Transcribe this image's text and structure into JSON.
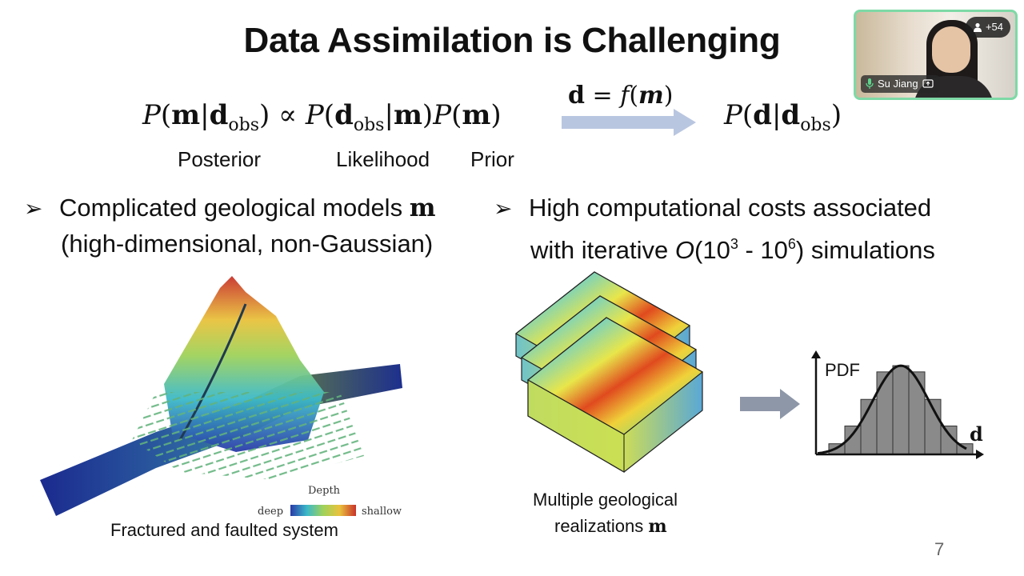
{
  "slide": {
    "title": "Data Assimilation is Challenging",
    "equation": {
      "posterior_label": "Posterior",
      "likelihood_label": "Likelihood",
      "prior_label": "Prior",
      "mapping": "d = f(m)"
    },
    "bullets": [
      {
        "line1_text": "Complicated geological models ",
        "line1_math": "m",
        "line2": "(high-dimensional, non-Gaussian)"
      },
      {
        "line1": "High computational costs associated",
        "line2_a": "with iterative ",
        "line2_O": "O",
        "line2_b": "(10",
        "exp1": "3",
        "line2_c": " - 10",
        "exp2": "6",
        "line2_d": ") simulations"
      }
    ],
    "figure_left": {
      "colorbar_title": "Depth",
      "colorbar_low": "deep",
      "colorbar_high": "shallow",
      "caption": "Fractured and faulted system"
    },
    "figure_middle": {
      "caption_line1": "Multiple geological",
      "caption_line2_text": "realizations ",
      "caption_line2_math": "m"
    },
    "figure_right": {
      "y_label": "PDF",
      "x_label": "d"
    },
    "page_number": "7"
  },
  "video_tile": {
    "participant_name": "Su Jiang",
    "participant_count": "+54",
    "icons": [
      "mic-icon",
      "screen-share-icon",
      "person-icon"
    ]
  },
  "colors": {
    "arrow_light": "#b9c6e0",
    "arrow_dark": "#8d97a8",
    "tile_border": "#7ed9a6",
    "histogram_bar": "#8a8a8a"
  },
  "chart_data": {
    "type": "bar",
    "title": "",
    "xlabel": "d",
    "ylabel": "PDF",
    "categories": [
      "1",
      "2",
      "3",
      "4",
      "5",
      "6",
      "7",
      "8",
      "9"
    ],
    "values": [
      0.12,
      0.32,
      0.62,
      0.93,
      1.0,
      0.93,
      0.62,
      0.32,
      0.12
    ],
    "overlay": "gaussian-curve",
    "ylim": [
      0,
      1.1
    ],
    "grid": false
  }
}
